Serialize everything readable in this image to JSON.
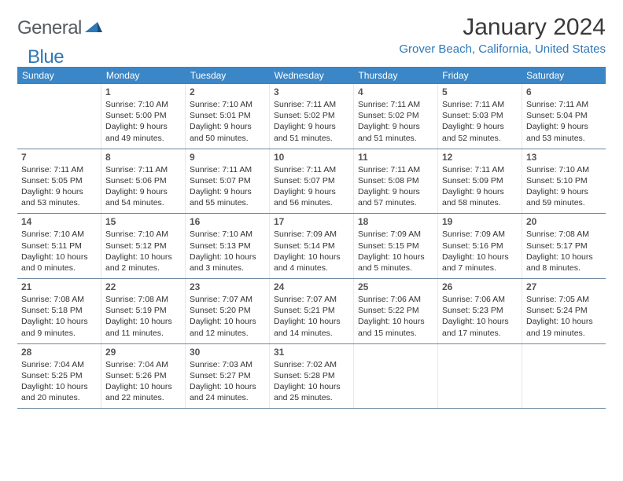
{
  "logo": {
    "text1": "General",
    "text2": "Blue"
  },
  "header": {
    "month_title": "January 2024",
    "location": "Grover Beach, California, United States"
  },
  "colors": {
    "header_bar": "#3b86c6",
    "accent": "#2f78b9",
    "row_divider": "#6d88a0",
    "text": "#333333"
  },
  "days_of_week": [
    "Sunday",
    "Monday",
    "Tuesday",
    "Wednesday",
    "Thursday",
    "Friday",
    "Saturday"
  ],
  "calendar": {
    "start_day_index": 1,
    "days": [
      {
        "n": 1,
        "sunrise": "7:10 AM",
        "sunset": "5:00 PM",
        "dl1": "Daylight: 9 hours",
        "dl2": "and 49 minutes."
      },
      {
        "n": 2,
        "sunrise": "7:10 AM",
        "sunset": "5:01 PM",
        "dl1": "Daylight: 9 hours",
        "dl2": "and 50 minutes."
      },
      {
        "n": 3,
        "sunrise": "7:11 AM",
        "sunset": "5:02 PM",
        "dl1": "Daylight: 9 hours",
        "dl2": "and 51 minutes."
      },
      {
        "n": 4,
        "sunrise": "7:11 AM",
        "sunset": "5:02 PM",
        "dl1": "Daylight: 9 hours",
        "dl2": "and 51 minutes."
      },
      {
        "n": 5,
        "sunrise": "7:11 AM",
        "sunset": "5:03 PM",
        "dl1": "Daylight: 9 hours",
        "dl2": "and 52 minutes."
      },
      {
        "n": 6,
        "sunrise": "7:11 AM",
        "sunset": "5:04 PM",
        "dl1": "Daylight: 9 hours",
        "dl2": "and 53 minutes."
      },
      {
        "n": 7,
        "sunrise": "7:11 AM",
        "sunset": "5:05 PM",
        "dl1": "Daylight: 9 hours",
        "dl2": "and 53 minutes."
      },
      {
        "n": 8,
        "sunrise": "7:11 AM",
        "sunset": "5:06 PM",
        "dl1": "Daylight: 9 hours",
        "dl2": "and 54 minutes."
      },
      {
        "n": 9,
        "sunrise": "7:11 AM",
        "sunset": "5:07 PM",
        "dl1": "Daylight: 9 hours",
        "dl2": "and 55 minutes."
      },
      {
        "n": 10,
        "sunrise": "7:11 AM",
        "sunset": "5:07 PM",
        "dl1": "Daylight: 9 hours",
        "dl2": "and 56 minutes."
      },
      {
        "n": 11,
        "sunrise": "7:11 AM",
        "sunset": "5:08 PM",
        "dl1": "Daylight: 9 hours",
        "dl2": "and 57 minutes."
      },
      {
        "n": 12,
        "sunrise": "7:11 AM",
        "sunset": "5:09 PM",
        "dl1": "Daylight: 9 hours",
        "dl2": "and 58 minutes."
      },
      {
        "n": 13,
        "sunrise": "7:10 AM",
        "sunset": "5:10 PM",
        "dl1": "Daylight: 9 hours",
        "dl2": "and 59 minutes."
      },
      {
        "n": 14,
        "sunrise": "7:10 AM",
        "sunset": "5:11 PM",
        "dl1": "Daylight: 10 hours",
        "dl2": "and 0 minutes."
      },
      {
        "n": 15,
        "sunrise": "7:10 AM",
        "sunset": "5:12 PM",
        "dl1": "Daylight: 10 hours",
        "dl2": "and 2 minutes."
      },
      {
        "n": 16,
        "sunrise": "7:10 AM",
        "sunset": "5:13 PM",
        "dl1": "Daylight: 10 hours",
        "dl2": "and 3 minutes."
      },
      {
        "n": 17,
        "sunrise": "7:09 AM",
        "sunset": "5:14 PM",
        "dl1": "Daylight: 10 hours",
        "dl2": "and 4 minutes."
      },
      {
        "n": 18,
        "sunrise": "7:09 AM",
        "sunset": "5:15 PM",
        "dl1": "Daylight: 10 hours",
        "dl2": "and 5 minutes."
      },
      {
        "n": 19,
        "sunrise": "7:09 AM",
        "sunset": "5:16 PM",
        "dl1": "Daylight: 10 hours",
        "dl2": "and 7 minutes."
      },
      {
        "n": 20,
        "sunrise": "7:08 AM",
        "sunset": "5:17 PM",
        "dl1": "Daylight: 10 hours",
        "dl2": "and 8 minutes."
      },
      {
        "n": 21,
        "sunrise": "7:08 AM",
        "sunset": "5:18 PM",
        "dl1": "Daylight: 10 hours",
        "dl2": "and 9 minutes."
      },
      {
        "n": 22,
        "sunrise": "7:08 AM",
        "sunset": "5:19 PM",
        "dl1": "Daylight: 10 hours",
        "dl2": "and 11 minutes."
      },
      {
        "n": 23,
        "sunrise": "7:07 AM",
        "sunset": "5:20 PM",
        "dl1": "Daylight: 10 hours",
        "dl2": "and 12 minutes."
      },
      {
        "n": 24,
        "sunrise": "7:07 AM",
        "sunset": "5:21 PM",
        "dl1": "Daylight: 10 hours",
        "dl2": "and 14 minutes."
      },
      {
        "n": 25,
        "sunrise": "7:06 AM",
        "sunset": "5:22 PM",
        "dl1": "Daylight: 10 hours",
        "dl2": "and 15 minutes."
      },
      {
        "n": 26,
        "sunrise": "7:06 AM",
        "sunset": "5:23 PM",
        "dl1": "Daylight: 10 hours",
        "dl2": "and 17 minutes."
      },
      {
        "n": 27,
        "sunrise": "7:05 AM",
        "sunset": "5:24 PM",
        "dl1": "Daylight: 10 hours",
        "dl2": "and 19 minutes."
      },
      {
        "n": 28,
        "sunrise": "7:04 AM",
        "sunset": "5:25 PM",
        "dl1": "Daylight: 10 hours",
        "dl2": "and 20 minutes."
      },
      {
        "n": 29,
        "sunrise": "7:04 AM",
        "sunset": "5:26 PM",
        "dl1": "Daylight: 10 hours",
        "dl2": "and 22 minutes."
      },
      {
        "n": 30,
        "sunrise": "7:03 AM",
        "sunset": "5:27 PM",
        "dl1": "Daylight: 10 hours",
        "dl2": "and 24 minutes."
      },
      {
        "n": 31,
        "sunrise": "7:02 AM",
        "sunset": "5:28 PM",
        "dl1": "Daylight: 10 hours",
        "dl2": "and 25 minutes."
      }
    ],
    "labels": {
      "sunrise_prefix": "Sunrise: ",
      "sunset_prefix": "Sunset: "
    }
  }
}
